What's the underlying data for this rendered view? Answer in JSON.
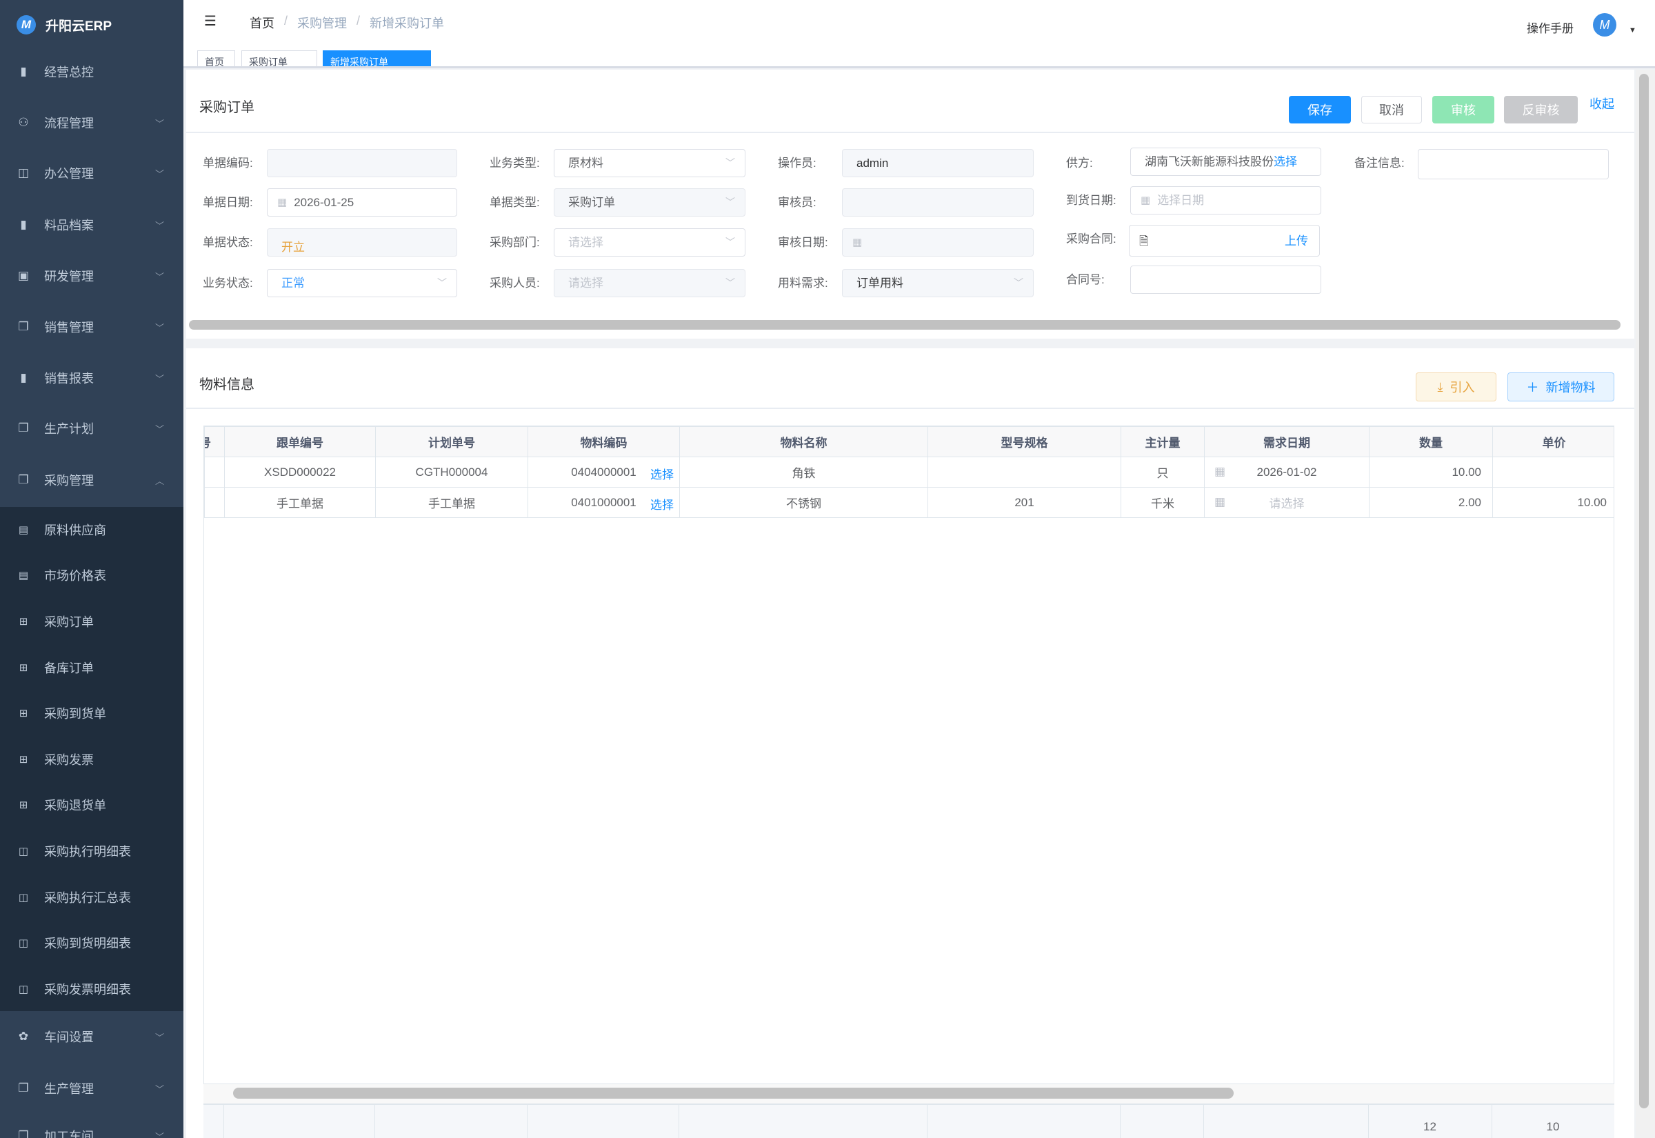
{
  "app": {
    "title": "升阳云ERP",
    "logo_icon": "brand-m-logo"
  },
  "sidebar": {
    "items": [
      {
        "label": "经营总控",
        "icon": "bar-chart-icon",
        "expandable": false
      },
      {
        "label": "流程管理",
        "icon": "flow-icon",
        "expandable": true
      },
      {
        "label": "办公管理",
        "icon": "office-icon",
        "expandable": true
      },
      {
        "label": "料品档案",
        "icon": "book-icon",
        "expandable": true
      },
      {
        "label": "研发管理",
        "icon": "info-icon",
        "expandable": true
      },
      {
        "label": "销售管理",
        "icon": "documents-icon",
        "expandable": true
      },
      {
        "label": "销售报表",
        "icon": "bar-chart-icon",
        "expandable": true
      },
      {
        "label": "生产计划",
        "icon": "documents-icon",
        "expandable": true
      },
      {
        "label": "采购管理",
        "icon": "documents-icon",
        "expandable": true,
        "expanded": true
      }
    ],
    "submenu": [
      {
        "label": "原料供应商",
        "icon": "form-icon"
      },
      {
        "label": "市场价格表",
        "icon": "form-icon"
      },
      {
        "label": "采购订单",
        "icon": "table-icon"
      },
      {
        "label": "备库订单",
        "icon": "table-icon"
      },
      {
        "label": "采购到货单",
        "icon": "table-icon"
      },
      {
        "label": "采购发票",
        "icon": "table-icon"
      },
      {
        "label": "采购退货单",
        "icon": "table-icon"
      },
      {
        "label": "采购执行明细表",
        "icon": "open-book-icon"
      },
      {
        "label": "采购执行汇总表",
        "icon": "open-book-icon"
      },
      {
        "label": "采购到货明细表",
        "icon": "open-book-icon"
      },
      {
        "label": "采购发票明细表",
        "icon": "open-book-icon"
      }
    ],
    "bottom_items": [
      {
        "label": "车间设置",
        "icon": "gear-icon"
      },
      {
        "label": "生产管理",
        "icon": "documents-icon"
      },
      {
        "label": "加工车间",
        "icon": "documents-icon"
      }
    ]
  },
  "header": {
    "breadcrumb": [
      "首页",
      "采购管理",
      "新增采购订单"
    ],
    "manual": "操作手册"
  },
  "tags": [
    "首页",
    "采购订单",
    "新增采购订单"
  ],
  "order": {
    "title": "采购订单",
    "buttons": {
      "save": "保存",
      "cancel": "取消",
      "approve": "审核",
      "unapprove": "反审核",
      "collapse": "收起"
    },
    "fields": {
      "code": {
        "label": "单据编码:",
        "value": ""
      },
      "date": {
        "label": "单据日期:",
        "value": "2026-01-25"
      },
      "status": {
        "label": "单据状态:",
        "value": "开立"
      },
      "biz_status": {
        "label": "业务状态:",
        "value": "正常"
      },
      "biz_type": {
        "label": "业务类型:",
        "value": "原材料"
      },
      "doc_type": {
        "label": "单据类型:",
        "value": "采购订单"
      },
      "dept": {
        "label": "采购部门:",
        "placeholder": "请选择"
      },
      "buyer": {
        "label": "采购人员:",
        "placeholder": "请选择"
      },
      "operator": {
        "label": "操作员:",
        "value": "admin"
      },
      "auditor": {
        "label": "审核员:",
        "value": ""
      },
      "audit_date": {
        "label": "审核日期:",
        "value": ""
      },
      "demand": {
        "label": "用料需求:",
        "value": "订单用料"
      },
      "supplier": {
        "label": "供方:",
        "value": "湖南飞沃新能源科技股份",
        "action": "选择"
      },
      "arrival": {
        "label": "到货日期:",
        "placeholder": "选择日期"
      },
      "contract": {
        "label": "采购合同:",
        "action": "上传"
      },
      "contract_no": {
        "label": "合同号:",
        "value": ""
      },
      "remark": {
        "label": "备注信息:",
        "value": ""
      }
    }
  },
  "materials": {
    "title": "物料信息",
    "import": "引入",
    "add": "新增物料",
    "columns": [
      "号",
      "跟单编号",
      "计划单号",
      "物料编码",
      "物料名称",
      "型号规格",
      "主计量",
      "需求日期",
      "数量",
      "单价"
    ],
    "select_label": "选择",
    "rows": [
      {
        "track": "XSDD000022",
        "plan": "CGTH000004",
        "code": "0404000001",
        "name": "角铁",
        "spec": "",
        "unit": "只",
        "date": "2026-01-02",
        "date_placeholder": "",
        "qty": "10.00",
        "price": ""
      },
      {
        "track": "手工单据",
        "plan": "手工单据",
        "code": "0401000001",
        "name": "不锈钢",
        "spec": "201",
        "unit": "千米",
        "date": "",
        "date_placeholder": "请选择",
        "qty": "2.00",
        "price": "10.00"
      }
    ],
    "summary": {
      "qty": "12",
      "price": "10"
    }
  },
  "colors": {
    "sidebar": "#304156",
    "submenu": "#1f2d3d",
    "primary": "#1890ff",
    "success_disabled": "#8ee6b4",
    "warning": "#e6a23c"
  }
}
